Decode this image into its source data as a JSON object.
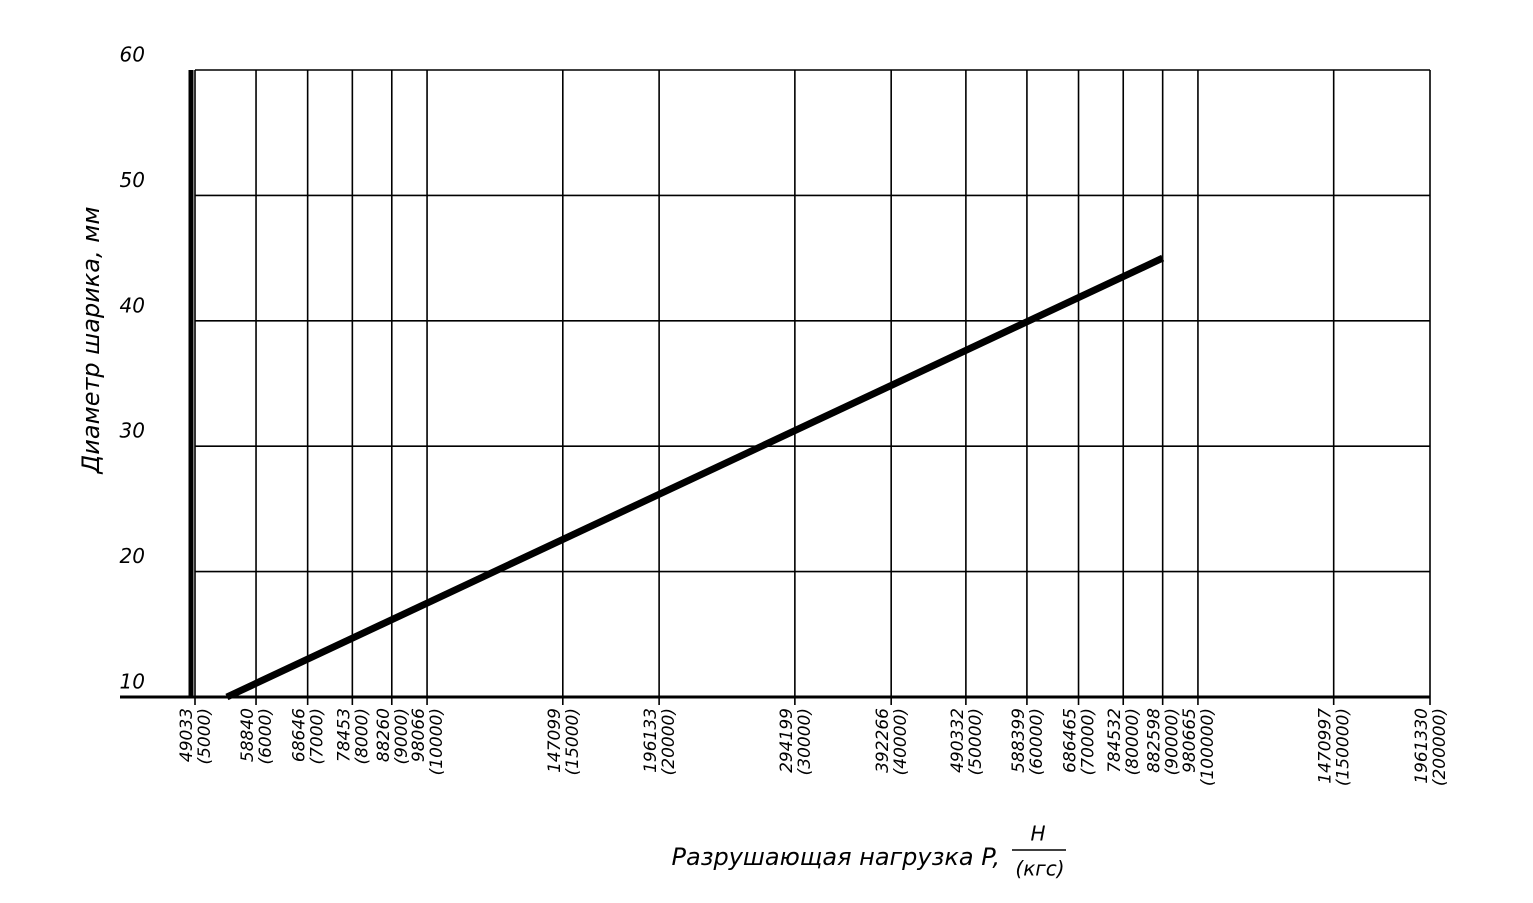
{
  "chart_data": {
    "type": "line",
    "y_label": "Диаметр шарика, мм",
    "x_label": "Разрушающая нагрузка P,",
    "x_unit_top": "Н",
    "x_unit_bottom": "(кгс)",
    "xscale": "log",
    "xlim": [
      5000,
      200000
    ],
    "ylim": [
      10,
      60
    ],
    "yticks": [
      10,
      20,
      30,
      40,
      50,
      60
    ],
    "grid": true,
    "xticks": [
      {
        "value": 5000,
        "label": "49033"
      },
      {
        "value": 6000,
        "label": "58840"
      },
      {
        "value": 7000,
        "label": "68646"
      },
      {
        "value": 8000,
        "label": "78453"
      },
      {
        "value": 9000,
        "label": "88260"
      },
      {
        "value": 10000,
        "label": "98066"
      },
      {
        "value": 15000,
        "label": "147099"
      },
      {
        "value": 20000,
        "label": "196133"
      },
      {
        "value": 30000,
        "label": "294199"
      },
      {
        "value": 40000,
        "label": "392266"
      },
      {
        "value": 50000,
        "label": "490332"
      },
      {
        "value": 60000,
        "label": "588399"
      },
      {
        "value": 70000,
        "label": "686465"
      },
      {
        "value": 80000,
        "label": "784532"
      },
      {
        "value": 90000,
        "label": "882598"
      },
      {
        "value": 100000,
        "label": "980665"
      },
      {
        "value": 150000,
        "label": "1470997"
      },
      {
        "value": 200000,
        "label": "1961330"
      }
    ],
    "xticks_kgf": [
      {
        "value": 5000,
        "label": "(5000)"
      },
      {
        "value": 6000,
        "label": "(6000)"
      },
      {
        "value": 7000,
        "label": "(7000)"
      },
      {
        "value": 8000,
        "label": "(8000)"
      },
      {
        "value": 9000,
        "label": "(9000)"
      },
      {
        "value": 10000,
        "label": "(10000)"
      },
      {
        "value": 15000,
        "label": "(15000)"
      },
      {
        "value": 20000,
        "label": "(20000)"
      },
      {
        "value": 30000,
        "label": "(30000)"
      },
      {
        "value": 40000,
        "label": "(40000)"
      },
      {
        "value": 50000,
        "label": "(50000)"
      },
      {
        "value": 60000,
        "label": "(60000)"
      },
      {
        "value": 70000,
        "label": "(70000)"
      },
      {
        "value": 80000,
        "label": "(80000)"
      },
      {
        "value": 90000,
        "label": "(90000)"
      },
      {
        "value": 100000,
        "label": "(100000)"
      },
      {
        "value": 150000,
        "label": "(150000)"
      },
      {
        "value": 200000,
        "label": "(200000)"
      }
    ],
    "series": [
      {
        "color": "#000000",
        "x": [
          5500,
          90000
        ],
        "values": [
          10,
          45
        ]
      }
    ]
  }
}
